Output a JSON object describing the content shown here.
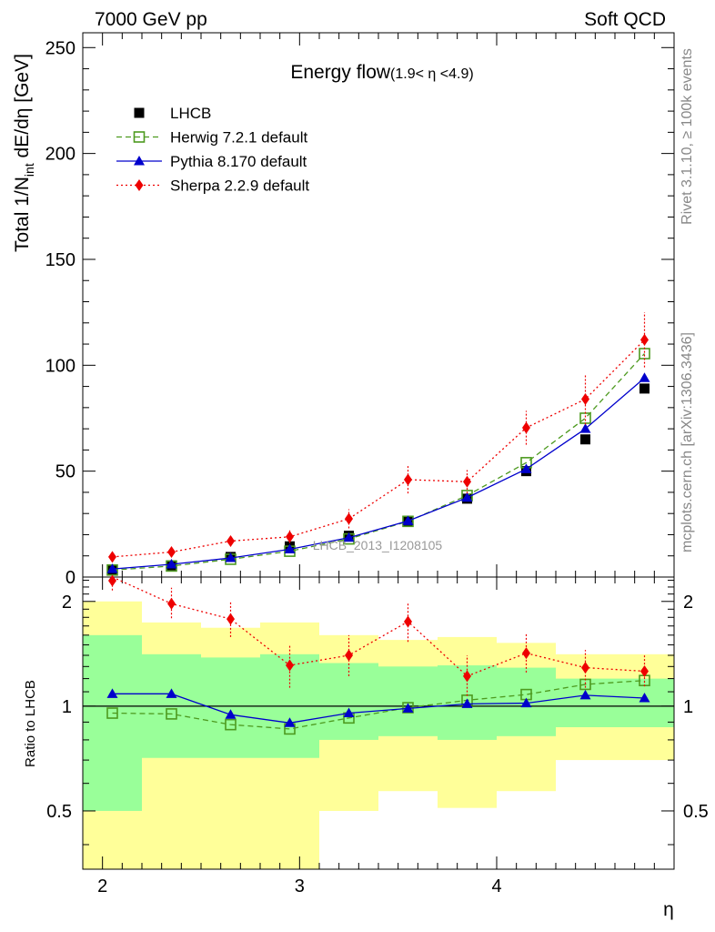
{
  "header": {
    "left": "7000 GeV pp",
    "right": "Soft QCD"
  },
  "side": {
    "top": "Rivet 3.1.10, ≥ 100k events",
    "bottom": "mcplots.cern.ch [arXiv:1306.3436]"
  },
  "chart_data": [
    {
      "type": "line",
      "title_main": "Energy flow",
      "title_sub": "(1.9< η <4.9)",
      "ylabel_pre": "Total 1/N",
      "ylabel_sub": "int",
      "ylabel_post": " dE/dη [GeV]",
      "watermark": "LHCB_2013_I1208105",
      "xlim": [
        1.9,
        4.9
      ],
      "ylim": [
        0,
        257
      ],
      "yticks": [
        0,
        50,
        100,
        150,
        200,
        250
      ],
      "x": [
        2.05,
        2.35,
        2.65,
        2.95,
        3.25,
        3.55,
        3.85,
        4.15,
        4.45,
        4.75
      ],
      "legend_position": "top-left",
      "series": [
        {
          "name": "LHCB",
          "color": "#000000",
          "marker": "square-filled",
          "line": "none",
          "values": [
            3.5,
            5.5,
            9.5,
            14.5,
            19.5,
            26.5,
            37,
            50,
            65,
            89
          ]
        },
        {
          "name": "Herwig 7.2.1 default",
          "color": "#4d9a1f",
          "marker": "square-open",
          "line": "dashed",
          "values": [
            3.3,
            5.2,
            8.4,
            12.2,
            18,
            26.3,
            38.5,
            54,
            75,
            105.5
          ]
        },
        {
          "name": "Pythia 8.170 default",
          "color": "#0000cc",
          "marker": "triangle",
          "line": "solid",
          "values": [
            3.8,
            6,
            9,
            13.1,
            18.6,
            26.5,
            37.5,
            51,
            70,
            94
          ]
        },
        {
          "name": "Sherpa 2.2.9 default",
          "color": "#ee0000",
          "marker": "diamond",
          "line": "dotted",
          "values": [
            9.5,
            11.8,
            17,
            19,
            27.5,
            46,
            45,
            70.5,
            84,
            112
          ],
          "errors": [
            1.5,
            1.5,
            2.5,
            3,
            4.5,
            6.5,
            5.5,
            8,
            12,
            13
          ]
        }
      ]
    },
    {
      "type": "line",
      "ylabel": "Ratio to LHCB",
      "xlabel": "η",
      "scale": "log",
      "ylim": [
        0.34,
        2.35
      ],
      "yticks": [
        0.5,
        1,
        2
      ],
      "yticklabels": [
        "0.5",
        "1",
        "2"
      ],
      "xticks": [
        2,
        3,
        4
      ],
      "x": [
        2.05,
        2.35,
        2.65,
        2.95,
        3.25,
        3.55,
        3.85,
        4.15,
        4.45,
        4.75
      ],
      "reference_line": 1,
      "bands": {
        "bins": [
          [
            1.9,
            2.2
          ],
          [
            2.2,
            2.5
          ],
          [
            2.5,
            2.8
          ],
          [
            2.8,
            3.1
          ],
          [
            3.1,
            3.4
          ],
          [
            3.4,
            3.7
          ],
          [
            3.7,
            4.0
          ],
          [
            4.0,
            4.3
          ],
          [
            4.3,
            4.6
          ],
          [
            4.6,
            4.9
          ]
        ],
        "inner_color": "#99ff99",
        "outer_color": "#ffff99",
        "inner": [
          [
            0.5,
            1.6
          ],
          [
            0.71,
            1.41
          ],
          [
            0.71,
            1.38
          ],
          [
            0.71,
            1.41
          ],
          [
            0.8,
            1.33
          ],
          [
            0.82,
            1.3
          ],
          [
            0.8,
            1.31
          ],
          [
            0.82,
            1.29
          ],
          [
            0.87,
            1.2
          ],
          [
            0.87,
            1.2
          ]
        ],
        "outer": [
          [
            0.3,
            2.0
          ],
          [
            0.3,
            1.74
          ],
          [
            0.3,
            1.68
          ],
          [
            0.3,
            1.74
          ],
          [
            0.5,
            1.6
          ],
          [
            0.57,
            1.55
          ],
          [
            0.51,
            1.58
          ],
          [
            0.57,
            1.52
          ],
          [
            0.7,
            1.41
          ],
          [
            0.7,
            1.41
          ]
        ]
      },
      "series": [
        {
          "name": "Herwig 7.2.1 default",
          "color": "#4d9a1f",
          "marker": "square-open",
          "line": "dashed",
          "values": [
            0.955,
            0.95,
            0.885,
            0.86,
            0.925,
            0.99,
            1.04,
            1.08,
            1.155,
            1.185
          ]
        },
        {
          "name": "Pythia 8.170 default",
          "color": "#0000cc",
          "marker": "triangle",
          "line": "solid",
          "values": [
            1.085,
            1.085,
            0.945,
            0.895,
            0.955,
            0.985,
            1.015,
            1.02,
            1.075,
            1.055
          ]
        },
        {
          "name": "Sherpa 2.2.9 default",
          "color": "#ee0000",
          "marker": "diamond",
          "line": "dotted",
          "values": [
            2.35,
            1.97,
            1.78,
            1.31,
            1.4,
            1.75,
            1.22,
            1.42,
            1.29,
            1.26
          ],
          "errors_low": [
            0.2,
            0.18,
            0.2,
            0.18,
            0.18,
            0.22,
            0.15,
            0.17,
            0.16,
            0.12
          ],
          "errors_high": [
            0.2,
            0.22,
            0.22,
            0.18,
            0.2,
            0.22,
            0.18,
            0.2,
            0.16,
            0.14
          ]
        }
      ]
    }
  ]
}
